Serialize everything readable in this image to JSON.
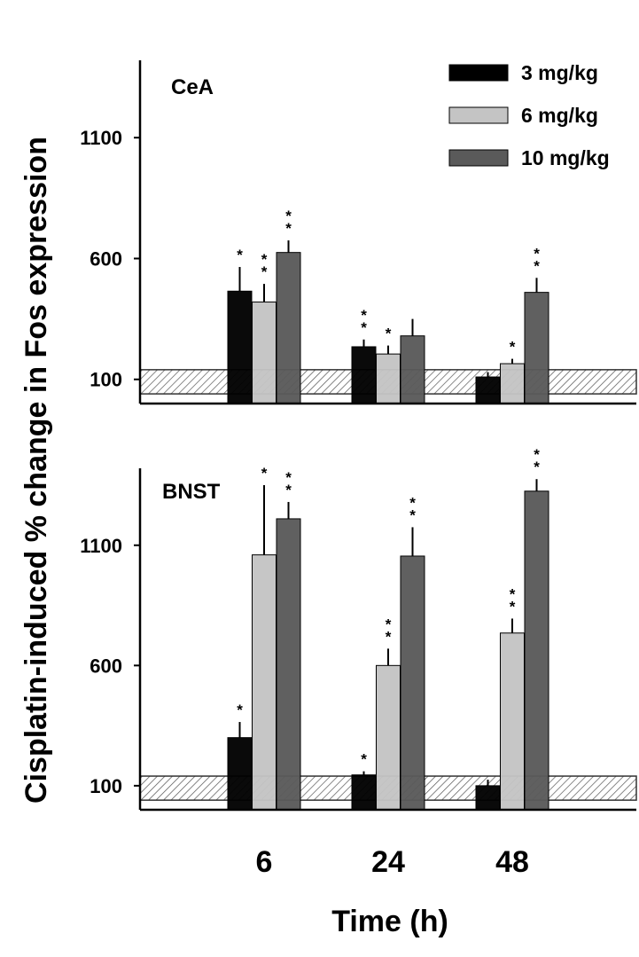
{
  "chart_data": {
    "type": "bar",
    "ylabel": "Cisplatin-induced % change in Fos expression",
    "xlabel": "Time (h)",
    "categories": [
      "6",
      "24",
      "48"
    ],
    "yticks": [
      100,
      600,
      1100
    ],
    "legend_position": "top-right",
    "series_colors": [
      "#000000",
      "#c4c4c4",
      "#5a5a5a"
    ],
    "baseline_band": [
      40,
      140
    ],
    "panels": [
      {
        "label": "CeA",
        "ylim": [
          0,
          1420
        ],
        "series": [
          {
            "name": "3 mg/kg",
            "values": [
              465,
              235,
              110
            ],
            "errors": [
              100,
              30,
              20
            ],
            "sig": [
              "*",
              "**",
              ""
            ]
          },
          {
            "name": "6 mg/kg",
            "values": [
              420,
              205,
              165
            ],
            "errors": [
              75,
              35,
              20
            ],
            "sig": [
              "**",
              "*",
              "*"
            ]
          },
          {
            "name": "10 mg/kg",
            "values": [
              625,
              280,
              460
            ],
            "errors": [
              50,
              70,
              60
            ],
            "sig": [
              "**",
              "",
              "**"
            ]
          }
        ]
      },
      {
        "label": "BNST",
        "ylim": [
          0,
          1420
        ],
        "series": [
          {
            "name": "3 mg/kg",
            "values": [
              300,
              145,
              100
            ],
            "errors": [
              65,
              15,
              25
            ],
            "sig": [
              "*",
              "*",
              ""
            ]
          },
          {
            "name": "6 mg/kg",
            "values": [
              1060,
              600,
              735
            ],
            "errors": [
              290,
              70,
              60
            ],
            "sig": [
              "*",
              "**",
              "**"
            ]
          },
          {
            "name": "10 mg/kg",
            "values": [
              1210,
              1055,
              1325
            ],
            "errors": [
              70,
              120,
              50
            ],
            "sig": [
              "**",
              "**",
              "**"
            ]
          }
        ]
      }
    ]
  }
}
